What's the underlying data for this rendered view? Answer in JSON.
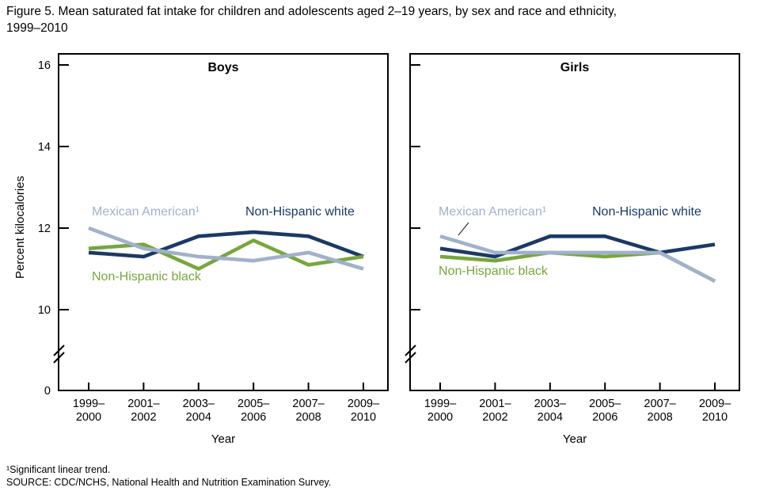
{
  "figure": {
    "title_line1": "Figure 5. Mean saturated fat intake for children and adolescents aged 2–19 years, by sex and race and ethnicity,",
    "title_line2": "1999–2010",
    "footnote1": "¹Significant linear trend.",
    "footnote2": "SOURCE: CDC/NCHS, National Health and Nutrition Examination Survey."
  },
  "colors": {
    "mexican_american": "#a1b1cb",
    "non_hispanic_white": "#1a3a64",
    "non_hispanic_black": "#77a63e",
    "axis": "#000000"
  },
  "chart_data": {
    "type": "line",
    "categories": [
      "1999–2000",
      "2001–2002",
      "2003–2004",
      "2005–2006",
      "2007–2008",
      "2009–2010"
    ],
    "xlabel": "Year",
    "ylabel": "Percent kilocalories",
    "ylim": [
      0,
      16
    ],
    "yticks": [
      0,
      10,
      12,
      14,
      16
    ],
    "y_axis_break_between": [
      0,
      10
    ],
    "grid": false,
    "legend": "inline labels on lines",
    "panels": [
      {
        "title": "Boys",
        "series": [
          {
            "name": "Mexican American¹",
            "key": "mexican_american",
            "color": "#a1b1cb",
            "significant_linear_trend": true,
            "values": [
              12.0,
              11.5,
              11.3,
              11.2,
              11.4,
              11.0
            ]
          },
          {
            "name": "Non-Hispanic white",
            "key": "non_hispanic_white",
            "color": "#1a3a64",
            "values": [
              11.4,
              11.3,
              11.8,
              11.9,
              11.8,
              11.3
            ]
          },
          {
            "name": "Non-Hispanic black",
            "key": "non_hispanic_black",
            "color": "#77a63e",
            "values": [
              11.5,
              11.6,
              11.0,
              11.7,
              11.1,
              11.3
            ]
          }
        ]
      },
      {
        "title": "Girls",
        "series": [
          {
            "name": "Mexican American¹",
            "key": "mexican_american",
            "color": "#a1b1cb",
            "significant_linear_trend": true,
            "values": [
              11.8,
              11.4,
              11.4,
              11.4,
              11.4,
              10.7
            ]
          },
          {
            "name": "Non-Hispanic white",
            "key": "non_hispanic_white",
            "color": "#1a3a64",
            "values": [
              11.5,
              11.3,
              11.8,
              11.8,
              11.4,
              11.6
            ]
          },
          {
            "name": "Non-Hispanic black",
            "key": "non_hispanic_black",
            "color": "#77a63e",
            "values": [
              11.3,
              11.2,
              11.4,
              11.3,
              11.4,
              10.7
            ]
          }
        ]
      }
    ]
  }
}
